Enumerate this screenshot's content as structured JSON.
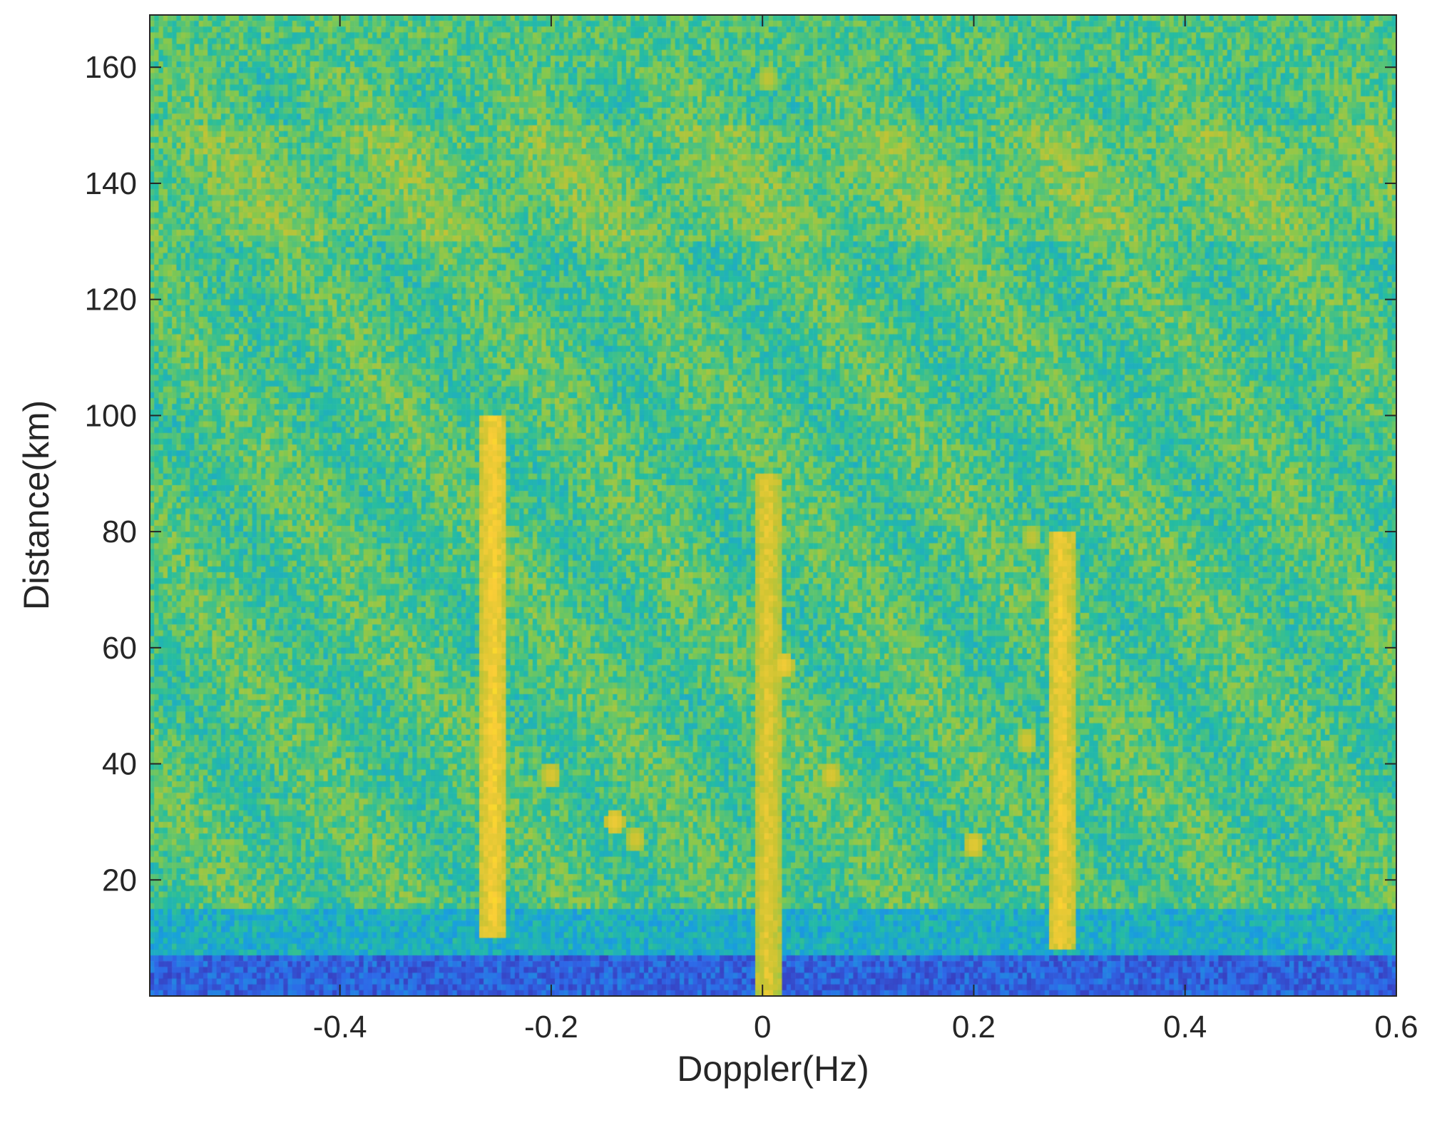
{
  "chart_data": {
    "type": "heatmap",
    "title": "",
    "xlabel": "Doppler(Hz)",
    "ylabel": "Distance(km)",
    "xlim": [
      -0.58,
      0.6
    ],
    "ylim": [
      0,
      169
    ],
    "xticks": [
      -0.4,
      -0.2,
      0,
      0.2,
      0.4,
      0.6
    ],
    "xtick_labels": [
      "-0.4",
      "-0.2",
      "0",
      "0.2",
      "0.4",
      "0.6"
    ],
    "yticks": [
      20,
      40,
      60,
      80,
      100,
      120,
      140,
      160
    ],
    "ytick_labels": [
      "20",
      "40",
      "60",
      "80",
      "100",
      "120",
      "140",
      "160"
    ],
    "colormap": "parula",
    "colors": {
      "low": "#3e26a8",
      "mid_low": "#2e87de",
      "mid": "#26bda0",
      "mid_high": "#a6c73b",
      "high": "#f9fb0e"
    },
    "background_intensity": {
      "description_free_levels": [
        {
          "distance_range": [
            0,
            7
          ],
          "level": 0.18
        },
        {
          "distance_range": [
            7,
            15
          ],
          "level": 0.42
        },
        {
          "distance_range": [
            15,
            169
          ],
          "level": 0.55
        }
      ]
    },
    "ridges": [
      {
        "doppler": -0.255,
        "distance_range": [
          10,
          100
        ],
        "level": 0.88
      },
      {
        "doppler": 0.005,
        "distance_range": [
          0,
          90
        ],
        "level": 0.82
      },
      {
        "doppler": 0.283,
        "distance_range": [
          8,
          80
        ],
        "level": 0.86
      }
    ],
    "blobs": [
      {
        "doppler": -0.2,
        "distance": 38,
        "level": 0.8
      },
      {
        "doppler": -0.14,
        "distance": 30,
        "level": 0.85
      },
      {
        "doppler": -0.12,
        "distance": 27,
        "level": 0.78
      },
      {
        "doppler": 0.02,
        "distance": 57,
        "level": 0.86
      },
      {
        "doppler": 0.065,
        "distance": 38,
        "level": 0.8
      },
      {
        "doppler": 0.2,
        "distance": 26,
        "level": 0.82
      },
      {
        "doppler": 0.25,
        "distance": 44,
        "level": 0.78
      },
      {
        "doppler": 0.255,
        "distance": 79,
        "level": 0.74
      },
      {
        "doppler": 0.005,
        "distance": 158,
        "level": 0.74
      }
    ]
  }
}
